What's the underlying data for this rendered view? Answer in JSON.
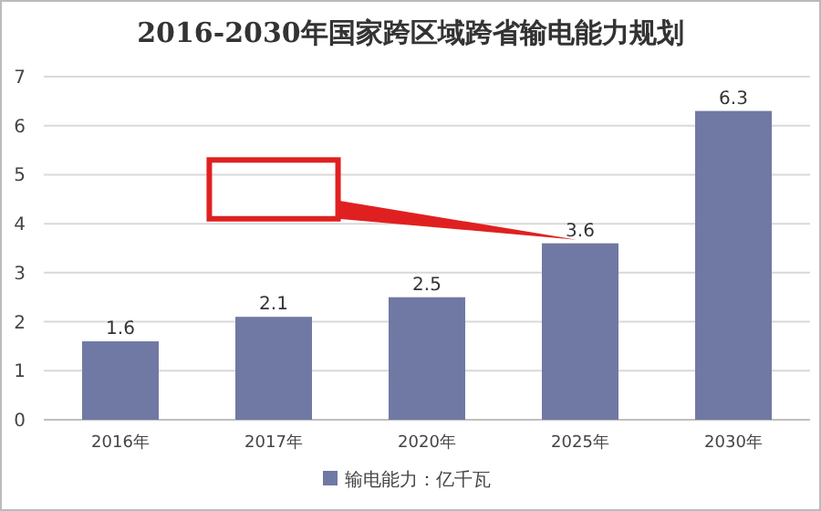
{
  "chart_data": {
    "type": "bar",
    "title": "2016-2030年国家跨区域跨省输电能力规划",
    "categories": [
      "2016年",
      "2017年",
      "2020年",
      "2025年",
      "2030年"
    ],
    "series": [
      {
        "name": "输电能力：亿千瓦",
        "color": "#7079a3",
        "values": [
          1.6,
          2.1,
          2.5,
          3.6,
          6.3
        ]
      }
    ],
    "ylim": [
      0,
      7
    ],
    "yticks": [
      0,
      1,
      2,
      3,
      4,
      5,
      6,
      7
    ],
    "grid": "y",
    "data_labels": true,
    "legend": "bottom"
  }
}
